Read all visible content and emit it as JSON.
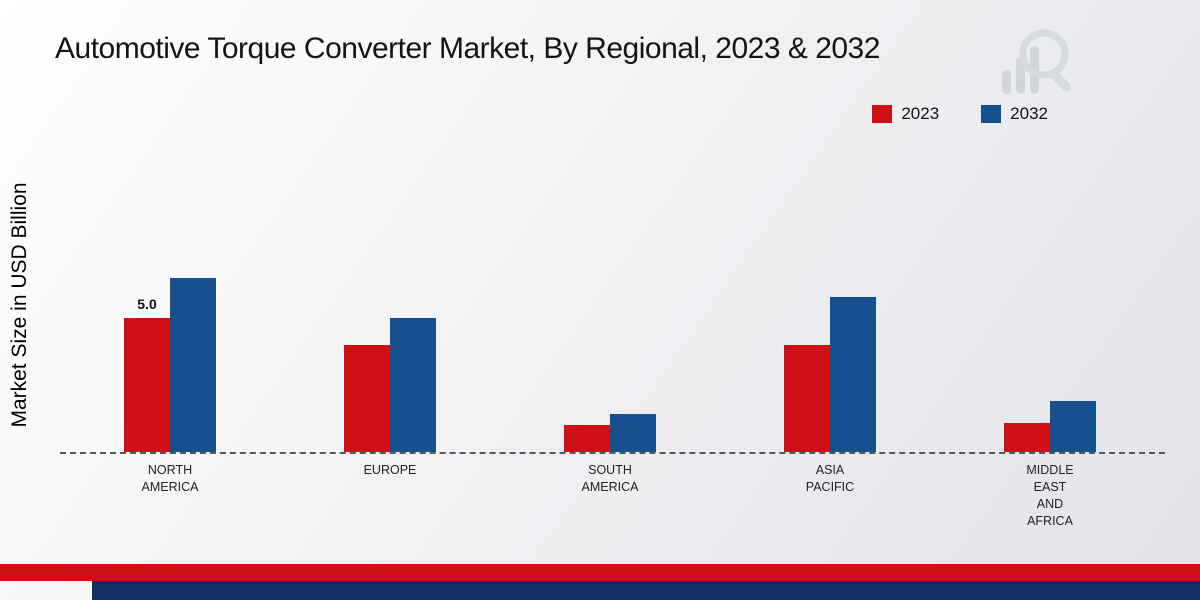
{
  "title": "Automotive Torque Converter Market, By Regional, 2023 & 2032",
  "y_axis_label": "Market Size in USD Billion",
  "legend": [
    {
      "label": "2023",
      "color": "#cf1016"
    },
    {
      "label": "2032",
      "color": "#17508f"
    }
  ],
  "colors": {
    "series_2023": "#cf1016",
    "series_2032": "#17508f",
    "bottom_strip_red": "#cf1016",
    "bottom_strip_navy": "#132e62",
    "baseline": "#55585c",
    "watermark": "#b9c0c9"
  },
  "chart_data": {
    "type": "bar",
    "title": "Automotive Torque Converter Market, By Regional, 2023 & 2032",
    "xlabel": "",
    "ylabel": "Market Size in USD Billion",
    "categories": [
      "NORTH AMERICA",
      "EUROPE",
      "SOUTH AMERICA",
      "ASIA PACIFIC",
      "MIDDLE EAST AND AFRICA"
    ],
    "category_label_lines": [
      [
        "NORTH",
        "AMERICA"
      ],
      [
        "EUROPE"
      ],
      [
        "SOUTH",
        "AMERICA"
      ],
      [
        "ASIA",
        "PACIFIC"
      ],
      [
        "MIDDLE",
        "EAST",
        "AND",
        "AFRICA"
      ]
    ],
    "series": [
      {
        "name": "2023",
        "color": "#cf1016",
        "values": [
          5.0,
          4.0,
          1.0,
          4.0,
          1.1
        ]
      },
      {
        "name": "2032",
        "color": "#17508f",
        "values": [
          6.5,
          5.0,
          1.4,
          5.8,
          1.9
        ]
      }
    ],
    "data_labels": [
      {
        "series_index": 0,
        "category_index": 0,
        "text": "5.0"
      }
    ],
    "units": "USD Billion",
    "ylim": [
      0,
      8
    ],
    "grid": false,
    "baseline_style": "dashed",
    "legend_position": "top-right"
  }
}
